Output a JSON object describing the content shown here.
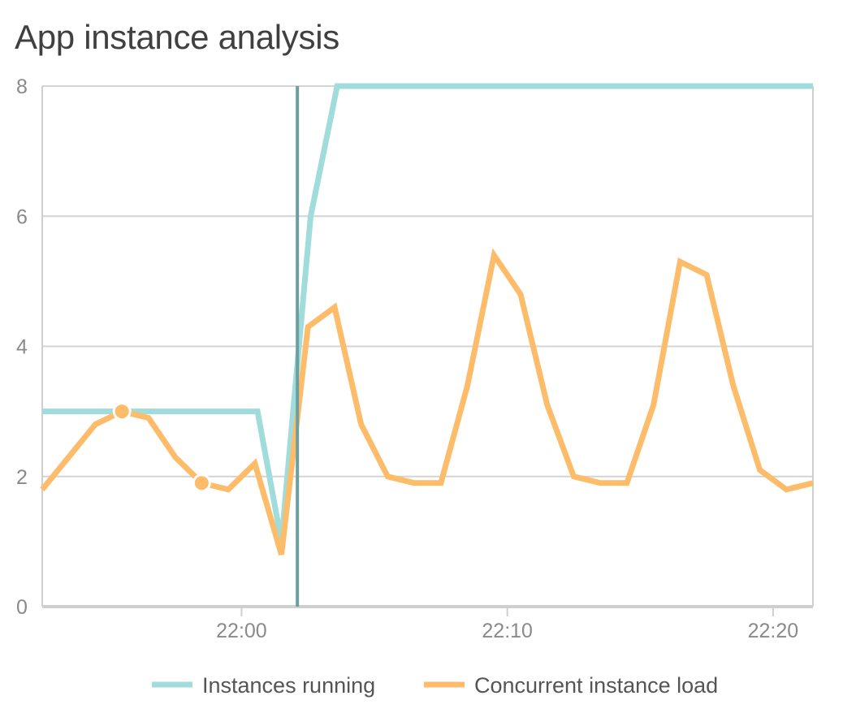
{
  "title": "App instance analysis",
  "colors": {
    "instances": "#9fdcdb",
    "load": "#fdbc6a",
    "cursor": "#6e9fa0",
    "grid": "#d4d4d4",
    "axis": "#cfcfcf",
    "tick_text": "#8a8a8a"
  },
  "chart_data": {
    "type": "line",
    "title": "App instance analysis",
    "xlabel": "",
    "ylabel": "",
    "x_unit": "minutes",
    "x_range": [
      -7.5,
      21.5
    ],
    "ylim": [
      0,
      8
    ],
    "y_ticks": [
      0,
      2,
      4,
      6,
      8
    ],
    "x_ticks": [
      {
        "value": 0,
        "label": "22:00"
      },
      {
        "value": 10,
        "label": "22:10"
      },
      {
        "value": 20,
        "label": "22:20"
      }
    ],
    "grid": true,
    "legend": "bottom",
    "cursor_x": 2.1,
    "series": [
      {
        "name": "Instances running",
        "color": "#9fdcdb",
        "points": [
          [
            -7.5,
            3
          ],
          [
            0.6,
            3
          ],
          [
            1.5,
            1
          ],
          [
            2.6,
            6
          ],
          [
            3.6,
            8
          ],
          [
            21.5,
            8
          ]
        ]
      },
      {
        "name": "Concurrent instance load",
        "color": "#fdbc6a",
        "points": [
          [
            -7.5,
            1.8
          ],
          [
            -6.5,
            2.3
          ],
          [
            -5.5,
            2.8
          ],
          [
            -4.5,
            3.0
          ],
          [
            -3.5,
            2.9
          ],
          [
            -2.5,
            2.3
          ],
          [
            -1.5,
            1.9
          ],
          [
            -0.5,
            1.8
          ],
          [
            0.5,
            2.2
          ],
          [
            1.5,
            0.8
          ],
          [
            2.5,
            4.3
          ],
          [
            3.5,
            4.6
          ],
          [
            4.5,
            2.8
          ],
          [
            5.5,
            2.0
          ],
          [
            6.5,
            1.9
          ],
          [
            7.5,
            1.9
          ],
          [
            8.5,
            3.4
          ],
          [
            9.5,
            5.4
          ],
          [
            10.5,
            4.8
          ],
          [
            11.5,
            3.1
          ],
          [
            12.5,
            2.0
          ],
          [
            13.5,
            1.9
          ],
          [
            14.5,
            1.9
          ],
          [
            15.5,
            3.1
          ],
          [
            16.5,
            5.3
          ],
          [
            17.5,
            5.1
          ],
          [
            18.5,
            3.4
          ],
          [
            19.5,
            2.1
          ],
          [
            20.5,
            1.8
          ],
          [
            21.5,
            1.9
          ]
        ],
        "markers": [
          [
            -4.5,
            3.0
          ],
          [
            -1.5,
            1.9
          ]
        ]
      }
    ]
  }
}
